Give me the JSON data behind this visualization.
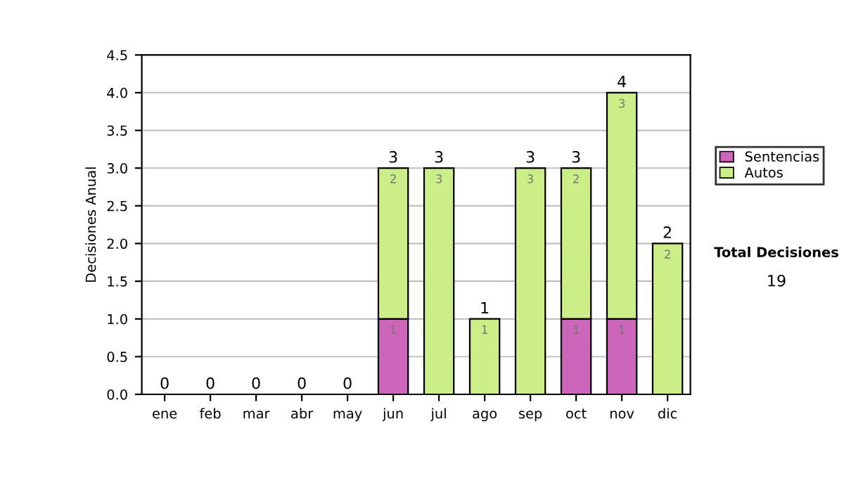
{
  "chart_data": {
    "type": "bar",
    "stacked": true,
    "ylabel": "Decisiones Anual",
    "categories": [
      "ene",
      "feb",
      "mar",
      "abr",
      "may",
      "jun",
      "jul",
      "ago",
      "sep",
      "oct",
      "nov",
      "dic"
    ],
    "series": [
      {
        "name": "Sentencias",
        "color": "#cc66bb",
        "values": [
          0,
          0,
          0,
          0,
          0,
          1,
          0,
          0,
          0,
          1,
          1,
          0
        ],
        "value_labels": [
          null,
          null,
          null,
          null,
          null,
          "1",
          null,
          null,
          null,
          "1",
          "1",
          null
        ]
      },
      {
        "name": "Autos",
        "color": "#ccee88",
        "values": [
          0,
          0,
          0,
          0,
          0,
          2,
          3,
          1,
          3,
          2,
          3,
          2
        ],
        "value_labels": [
          null,
          null,
          null,
          null,
          null,
          "2",
          "3",
          "1",
          "3",
          "2",
          "3",
          "2"
        ]
      }
    ],
    "totals": [
      "0",
      "0",
      "0",
      "0",
      "0",
      "3",
      "3",
      "1",
      "3",
      "3",
      "4",
      "2"
    ],
    "ylim": [
      0,
      4.5
    ],
    "yticks": [
      {
        "value": 0,
        "label": "0.0"
      },
      {
        "value": 0.5,
        "label": "0.5"
      },
      {
        "value": 1,
        "label": "1.0"
      },
      {
        "value": 1.5,
        "label": "1.5"
      },
      {
        "value": 2,
        "label": "2.0"
      },
      {
        "value": 2.5,
        "label": "2.5"
      },
      {
        "value": 3,
        "label": "3.0"
      },
      {
        "value": 3.5,
        "label": "3.5"
      },
      {
        "value": 4,
        "label": "4.0"
      },
      {
        "value": 4.5,
        "label": "4.5"
      }
    ],
    "grid": "y",
    "legend": "right",
    "annotations": [
      "Total Decisiones",
      "19"
    ]
  }
}
